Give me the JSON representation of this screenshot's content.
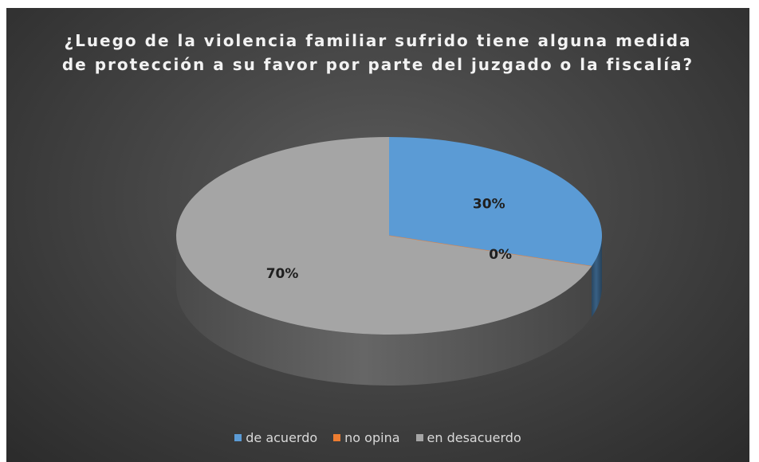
{
  "chart_data": {
    "type": "pie",
    "title": "¿Luego de la violencia familiar sufrido tiene alguna medida de protección a su favor por parte del juzgado o la fiscalía?",
    "categories": [
      "de acuerdo",
      "no opina",
      "en desacuerdo"
    ],
    "values": [
      30,
      0,
      70
    ],
    "data_labels": [
      "30%",
      "0%",
      "70%"
    ],
    "colors": [
      "#5b9bd5",
      "#ed7d31",
      "#a5a5a5"
    ],
    "legend_position": "bottom",
    "style": "3d"
  }
}
